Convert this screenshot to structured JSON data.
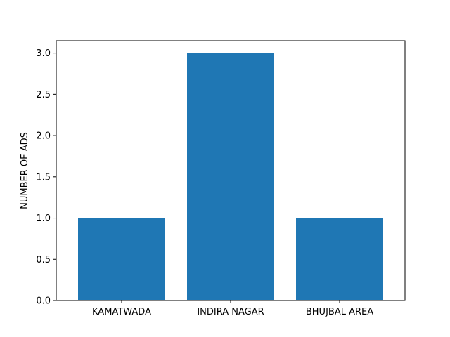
{
  "chart_data": {
    "type": "bar",
    "title": "",
    "xlabel": "",
    "ylabel": "NUMBER OF ADS",
    "categories": [
      "KAMATWADA",
      "INDIRA NAGAR",
      "BHUJBAL AREA"
    ],
    "values": [
      1,
      3,
      1
    ],
    "ylim": [
      0,
      3.15
    ],
    "yticks": [
      0.0,
      0.5,
      1.0,
      1.5,
      2.0,
      2.5,
      3.0
    ],
    "ytick_labels": [
      "0.0",
      "0.5",
      "1.0",
      "1.5",
      "2.0",
      "2.5",
      "3.0"
    ],
    "grid": false,
    "legend": "none",
    "bar_color": "#1f77b4"
  }
}
